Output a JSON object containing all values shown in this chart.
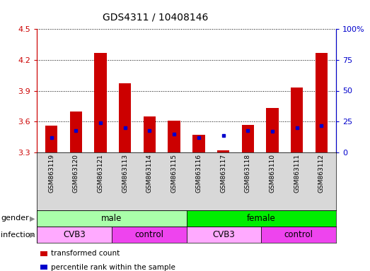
{
  "title": "GDS4311 / 10408146",
  "samples": [
    "GSM863119",
    "GSM863120",
    "GSM863121",
    "GSM863113",
    "GSM863114",
    "GSM863115",
    "GSM863116",
    "GSM863117",
    "GSM863118",
    "GSM863110",
    "GSM863111",
    "GSM863112"
  ],
  "transformed_count": [
    3.56,
    3.7,
    4.27,
    3.97,
    3.65,
    3.61,
    3.47,
    3.32,
    3.57,
    3.73,
    3.93,
    4.27
  ],
  "percentile_rank": [
    12,
    18,
    24,
    20,
    18,
    15,
    12,
    14,
    18,
    17,
    20,
    22
  ],
  "ylim_left": [
    3.3,
    4.5
  ],
  "ylim_right": [
    0,
    100
  ],
  "yticks_left": [
    3.3,
    3.6,
    3.9,
    4.2,
    4.5
  ],
  "yticks_right": [
    0,
    25,
    50,
    75,
    100
  ],
  "gender_groups": [
    {
      "label": "male",
      "start": 0,
      "end": 6,
      "color": "#aaffaa"
    },
    {
      "label": "female",
      "start": 6,
      "end": 12,
      "color": "#00ee00"
    }
  ],
  "infection_groups": [
    {
      "label": "CVB3",
      "start": 0,
      "end": 3,
      "color": "#ffaaff"
    },
    {
      "label": "control",
      "start": 3,
      "end": 6,
      "color": "#ee44ee"
    },
    {
      "label": "CVB3",
      "start": 6,
      "end": 9,
      "color": "#ffaaff"
    },
    {
      "label": "control",
      "start": 9,
      "end": 12,
      "color": "#ee44ee"
    }
  ],
  "bar_color": "#CC0000",
  "dot_color": "#0000CC",
  "left_axis_color": "#CC0000",
  "right_axis_color": "#0000CC",
  "bar_width": 0.5,
  "legend_items": [
    {
      "label": "transformed count",
      "color": "#CC0000"
    },
    {
      "label": "percentile rank within the sample",
      "color": "#0000CC"
    }
  ]
}
